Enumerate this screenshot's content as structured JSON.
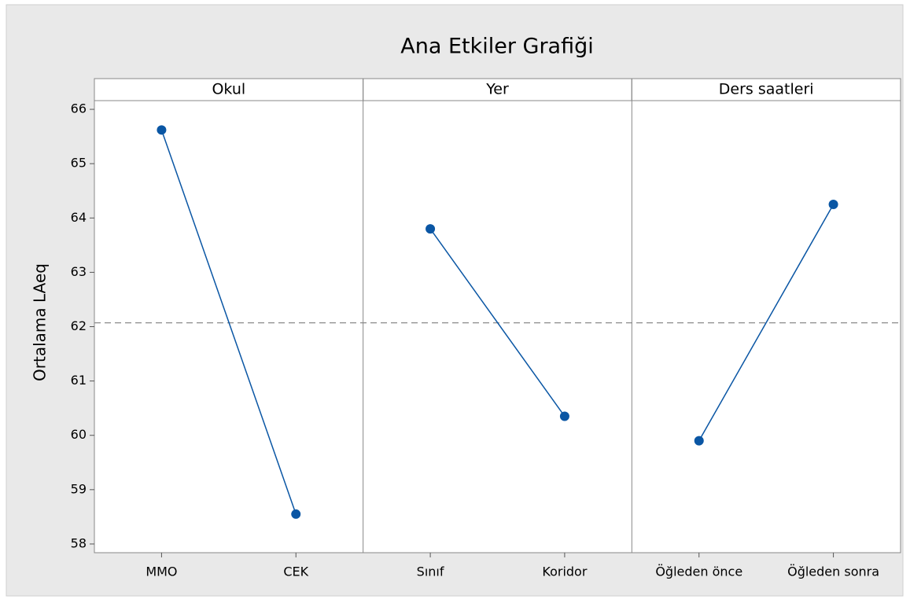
{
  "chart_data": {
    "type": "line",
    "title": "Ana Etkiler Grafiği",
    "ylabel": "Ortalama LAeq",
    "ylim": [
      57.84,
      66.16
    ],
    "yticks": [
      58,
      59,
      60,
      61,
      62,
      63,
      64,
      65,
      66
    ],
    "reference_line": 62.07,
    "color": "#0a56a4",
    "panels": [
      {
        "name": "Okul",
        "categories": [
          "MMO",
          "CEK"
        ],
        "values": [
          65.62,
          58.55
        ]
      },
      {
        "name": "Yer",
        "categories": [
          "Sınıf",
          "Koridor"
        ],
        "values": [
          63.8,
          60.35
        ]
      },
      {
        "name": "Ders saatleri",
        "categories": [
          "Öğleden önce",
          "Öğleden sonra"
        ],
        "values": [
          59.9,
          64.25
        ]
      }
    ]
  }
}
